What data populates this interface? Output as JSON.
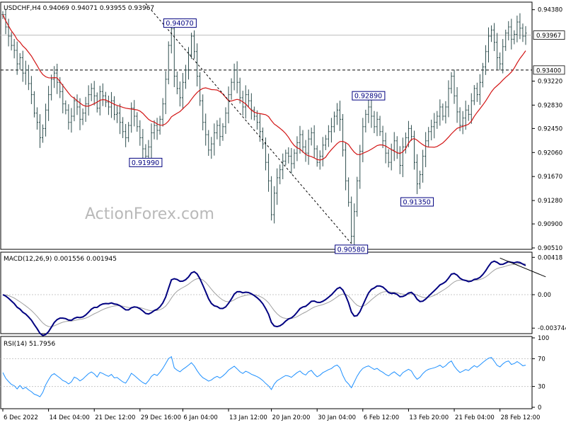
{
  "chart_data": [
    {
      "type": "bar",
      "panel": "price",
      "title": "USDCHF,H4  0.94069 0.94071 0.93955 0.93967",
      "ylim": [
        0.9051,
        0.9448
      ],
      "y_ticks": [
        "0.94380",
        "0.93220",
        "0.92830",
        "0.92450",
        "0.92060",
        "0.91670",
        "0.91280",
        "0.90900",
        "0.90510"
      ],
      "current_price": "0.93967",
      "horizontal_level": "0.93400",
      "swing_labels": [
        {
          "text": "0.94070",
          "value": 0.9407,
          "x_index": 62
        },
        {
          "text": "0.91990",
          "value": 0.9199,
          "x_index": 50
        },
        {
          "text": "0.92890",
          "value": 0.9289,
          "x_index": 128
        },
        {
          "text": "0.91350",
          "value": 0.9135,
          "x_index": 145
        },
        {
          "text": "0.90580",
          "value": 0.9058,
          "x_index": 122
        }
      ],
      "trendline": {
        "from": {
          "x_index": 50,
          "value": 0.9448
        },
        "to": {
          "x_index": 122,
          "value": 0.9058
        }
      },
      "close": [
        0.943,
        0.941,
        0.9395,
        0.938,
        0.9372,
        0.935,
        0.936,
        0.9335,
        0.934,
        0.9318,
        0.93,
        0.927,
        0.9255,
        0.923,
        0.9245,
        0.9275,
        0.93,
        0.9325,
        0.9335,
        0.932,
        0.9305,
        0.9285,
        0.9275,
        0.9255,
        0.9265,
        0.929,
        0.928,
        0.926,
        0.927,
        0.9285,
        0.93,
        0.931,
        0.9298,
        0.9278,
        0.9305,
        0.9298,
        0.9288,
        0.928,
        0.929,
        0.9268,
        0.927,
        0.9255,
        0.924,
        0.923,
        0.925,
        0.9278,
        0.9265,
        0.9248,
        0.923,
        0.9212,
        0.92,
        0.9215,
        0.9238,
        0.925,
        0.9242,
        0.926,
        0.9285,
        0.9325,
        0.938,
        0.9407,
        0.933,
        0.931,
        0.9295,
        0.932,
        0.934,
        0.9365,
        0.9395,
        0.937,
        0.933,
        0.929,
        0.9255,
        0.9235,
        0.921,
        0.922,
        0.9238,
        0.925,
        0.9232,
        0.9248,
        0.927,
        0.93,
        0.932,
        0.934,
        0.932,
        0.9295,
        0.928,
        0.93,
        0.929,
        0.9275,
        0.9265,
        0.9255,
        0.924,
        0.922,
        0.919,
        0.916,
        0.9105,
        0.914,
        0.9165,
        0.9178,
        0.9192,
        0.9205,
        0.92,
        0.9188,
        0.9205,
        0.9222,
        0.9235,
        0.9215,
        0.9205,
        0.9228,
        0.9238,
        0.9212,
        0.919,
        0.92,
        0.9218,
        0.9228,
        0.924,
        0.9248,
        0.9265,
        0.9275,
        0.926,
        0.921,
        0.916,
        0.9125,
        0.907,
        0.911,
        0.916,
        0.9208,
        0.9248,
        0.9268,
        0.928,
        0.9265,
        0.9248,
        0.926,
        0.924,
        0.9225,
        0.9205,
        0.919,
        0.921,
        0.9225,
        0.9205,
        0.9185,
        0.9215,
        0.923,
        0.9245,
        0.9232,
        0.919,
        0.9155,
        0.917,
        0.92,
        0.9225,
        0.924,
        0.9248,
        0.9255,
        0.9265,
        0.928,
        0.9265,
        0.928,
        0.931,
        0.933,
        0.9298,
        0.9272,
        0.925,
        0.9262,
        0.9275,
        0.9268,
        0.929,
        0.931,
        0.93,
        0.932,
        0.9345,
        0.937,
        0.9395,
        0.9405,
        0.9385,
        0.936,
        0.935,
        0.9378,
        0.94,
        0.941,
        0.939,
        0.9398,
        0.9418,
        0.9408,
        0.9395,
        0.94
      ],
      "moving_average": {
        "type": "sma",
        "period": 20
      }
    },
    {
      "type": "line",
      "panel": "macd",
      "title": "MACD(12,26,9) 0.001556 0.001945",
      "ylim": [
        -0.0042,
        0.0046
      ],
      "y_ticks": [
        "0.00418",
        "0.00",
        "-0.003744"
      ],
      "series": [
        {
          "role": "macd",
          "color": "#000080"
        },
        {
          "role": "signal",
          "color": "#a0a0a0"
        }
      ],
      "trendline": {
        "from": {
          "x_index": 174,
          "value": 0.0041
        },
        "to": {
          "x_index": 190,
          "value": 0.002
        }
      }
    },
    {
      "type": "line",
      "panel": "rsi",
      "title": "RSI(14) 51.7956",
      "ylim": [
        0,
        100
      ],
      "y_ticks": [
        "100",
        "70",
        "30",
        "0"
      ],
      "levels": [
        70,
        30
      ],
      "series": [
        {
          "role": "rsi",
          "color": "#1e90ff"
        }
      ]
    }
  ],
  "x_labels": [
    {
      "text": "6 Dec 2022",
      "x_index": 0
    },
    {
      "text": "14 Dec 04:00",
      "x_index": 16
    },
    {
      "text": "21 Dec 12:00",
      "x_index": 32
    },
    {
      "text": "29 Dec 16:00",
      "x_index": 48
    },
    {
      "text": "6 Jan 04:00",
      "x_index": 63
    },
    {
      "text": "13 Jan 12:00",
      "x_index": 79
    },
    {
      "text": "20 Jan 20:00",
      "x_index": 94
    },
    {
      "text": "30 Jan 04:00",
      "x_index": 110
    },
    {
      "text": "6 Feb 12:00",
      "x_index": 126
    },
    {
      "text": "13 Feb 20:00",
      "x_index": 142
    },
    {
      "text": "21 Feb 04:00",
      "x_index": 158
    },
    {
      "text": "28 Feb 12:00",
      "x_index": 174
    }
  ],
  "watermark": "ActionForex.com",
  "colors": {
    "bars": "#2f4f4f",
    "moving_average": "#d21414",
    "macd_line": "#000080",
    "signal_line": "#a0a0a0",
    "rsi_line": "#1e90ff",
    "grid": "#000000",
    "label_border": "#000080"
  }
}
